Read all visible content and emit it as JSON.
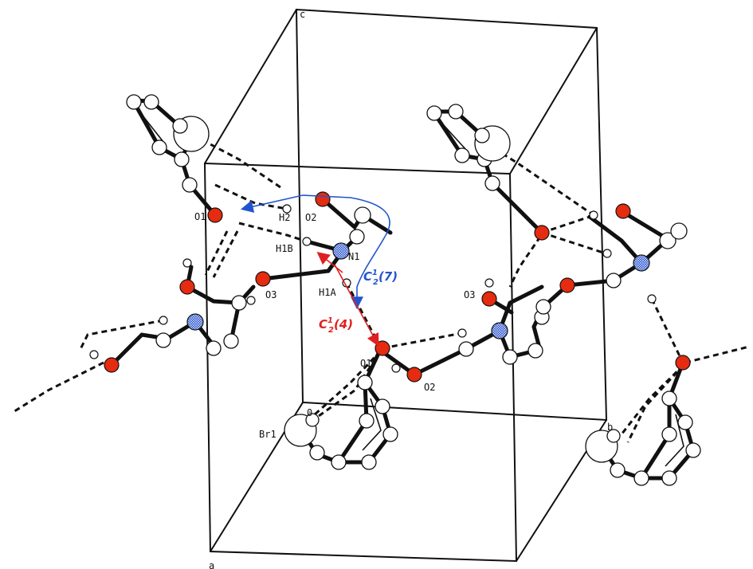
{
  "axes": {
    "a": "a",
    "b": "b",
    "c": "c",
    "origin": "0"
  },
  "atom_labels": {
    "O1_top": "O1",
    "H2": "H2",
    "O2_top": "O2",
    "H1B": "H1B",
    "N1": "N1",
    "H1A": "H1A",
    "O3_left": "O3",
    "O3_right": "O3",
    "O1_mid": "O1",
    "O2_mid": "O2",
    "Br1": "Br1"
  },
  "motifs": {
    "blue": {
      "main": "C",
      "sup": "1",
      "sub": "2",
      "tail": "(7)"
    },
    "red": {
      "main": "C",
      "sup": "1",
      "sub": "2",
      "tail": "(4)"
    }
  },
  "colors": {
    "oxygen": "#e52b10",
    "nitrogen": "#2850c8",
    "blue_motif": "#2255cc",
    "red_motif": "#e02020",
    "cell": "#111111"
  }
}
